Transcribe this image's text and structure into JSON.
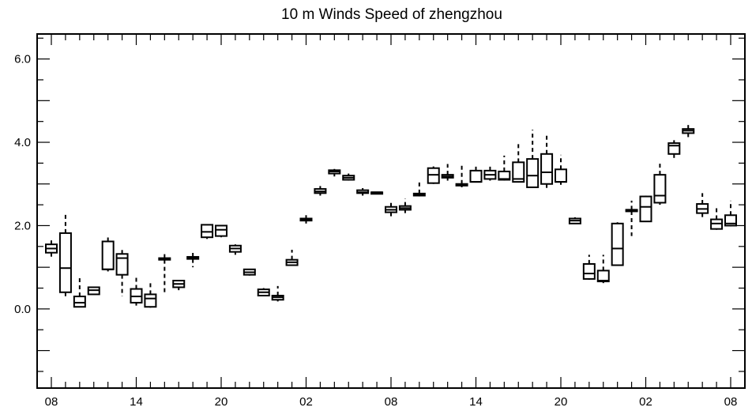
{
  "chart_data": {
    "type": "box",
    "title": "10 m Winds Speed of zhengzhou",
    "xlabel": "",
    "ylabel": "",
    "ylim": [
      -1.9,
      6.6
    ],
    "xlim": [
      -0.5,
      48.5
    ],
    "grid": false,
    "y_ticks": [
      {
        "value": 0.0,
        "label": "0.0"
      },
      {
        "value": 2.0,
        "label": "2.0"
      },
      {
        "value": 4.0,
        "label": "4.0"
      },
      {
        "value": 6.0,
        "label": "6.0"
      }
    ],
    "x_ticks": [
      {
        "index": 0,
        "label": "08"
      },
      {
        "index": 6,
        "label": "14"
      },
      {
        "index": 12,
        "label": "20"
      },
      {
        "index": 18,
        "label": "02"
      },
      {
        "index": 24,
        "label": "08"
      },
      {
        "index": 30,
        "label": "14"
      },
      {
        "index": 36,
        "label": "20"
      },
      {
        "index": 42,
        "label": "02"
      },
      {
        "index": 48,
        "label": "08"
      }
    ],
    "boxes": [
      {
        "index": 0,
        "min": 1.25,
        "q1": 1.35,
        "median": 1.45,
        "q3": 1.55,
        "max": 1.7
      },
      {
        "index": 1,
        "min": 0.25,
        "q1": 0.4,
        "median": 0.98,
        "q3": 1.82,
        "max": 2.3
      },
      {
        "index": 2,
        "min": 0.05,
        "q1": 0.05,
        "median": 0.15,
        "q3": 0.3,
        "max": 0.8
      },
      {
        "index": 3,
        "min": 0.35,
        "q1": 0.35,
        "median": 0.45,
        "q3": 0.52,
        "max": 0.52
      },
      {
        "index": 4,
        "min": 0.9,
        "q1": 0.95,
        "median": 0.95,
        "q3": 1.62,
        "max": 1.78
      },
      {
        "index": 5,
        "min": 0.3,
        "q1": 0.82,
        "median": 1.22,
        "q3": 1.32,
        "max": 1.42
      },
      {
        "index": 6,
        "min": 0.08,
        "q1": 0.15,
        "median": 0.3,
        "q3": 0.48,
        "max": 0.75
      },
      {
        "index": 7,
        "min": 0.03,
        "q1": 0.05,
        "median": 0.25,
        "q3": 0.35,
        "max": 0.65
      },
      {
        "index": 8,
        "min": 0.35,
        "q1": 1.18,
        "median": 1.2,
        "q3": 1.22,
        "max": 1.35
      },
      {
        "index": 9,
        "min": 0.45,
        "q1": 0.52,
        "median": 0.6,
        "q3": 0.68,
        "max": 0.68
      },
      {
        "index": 10,
        "min": 1.0,
        "q1": 1.2,
        "median": 1.22,
        "q3": 1.25,
        "max": 1.4
      },
      {
        "index": 11,
        "min": 1.68,
        "q1": 1.72,
        "median": 1.85,
        "q3": 2.02,
        "max": 2.02
      },
      {
        "index": 12,
        "min": 1.72,
        "q1": 1.75,
        "median": 1.9,
        "q3": 2.0,
        "max": 2.0
      },
      {
        "index": 13,
        "min": 1.3,
        "q1": 1.37,
        "median": 1.45,
        "q3": 1.52,
        "max": 1.55
      },
      {
        "index": 14,
        "min": 0.8,
        "q1": 0.82,
        "median": 0.88,
        "q3": 0.95,
        "max": 0.95
      },
      {
        "index": 15,
        "min": 0.32,
        "q1": 0.32,
        "median": 0.4,
        "q3": 0.47,
        "max": 0.5
      },
      {
        "index": 16,
        "min": 0.18,
        "q1": 0.22,
        "median": 0.28,
        "q3": 0.32,
        "max": 0.55
      },
      {
        "index": 17,
        "min": 1.05,
        "q1": 1.05,
        "median": 1.12,
        "q3": 1.18,
        "max": 1.42
      },
      {
        "index": 18,
        "min": 2.05,
        "q1": 2.12,
        "median": 2.15,
        "q3": 2.17,
        "max": 2.25
      },
      {
        "index": 19,
        "min": 2.72,
        "q1": 2.78,
        "median": 2.82,
        "q3": 2.88,
        "max": 2.95
      },
      {
        "index": 20,
        "min": 3.18,
        "q1": 3.25,
        "median": 3.3,
        "q3": 3.33,
        "max": 3.36
      },
      {
        "index": 21,
        "min": 3.08,
        "q1": 3.1,
        "median": 3.15,
        "q3": 3.2,
        "max": 3.25
      },
      {
        "index": 22,
        "min": 2.72,
        "q1": 2.78,
        "median": 2.8,
        "q3": 2.85,
        "max": 2.9
      },
      {
        "index": 23,
        "min": 2.78,
        "q1": 2.78,
        "median": 2.8,
        "q3": 2.8,
        "max": 2.8
      },
      {
        "index": 24,
        "min": 2.22,
        "q1": 2.32,
        "median": 2.38,
        "q3": 2.45,
        "max": 2.58
      },
      {
        "index": 25,
        "min": 2.3,
        "q1": 2.38,
        "median": 2.42,
        "q3": 2.47,
        "max": 2.65
      },
      {
        "index": 26,
        "min": 2.7,
        "q1": 2.72,
        "median": 2.75,
        "q3": 2.77,
        "max": 3.05
      },
      {
        "index": 27,
        "min": 3.0,
        "q1": 3.02,
        "median": 3.22,
        "q3": 3.38,
        "max": 3.42
      },
      {
        "index": 28,
        "min": 3.08,
        "q1": 3.15,
        "median": 3.18,
        "q3": 3.22,
        "max": 3.48
      },
      {
        "index": 29,
        "min": 2.92,
        "q1": 2.96,
        "median": 2.98,
        "q3": 3.0,
        "max": 3.45
      },
      {
        "index": 30,
        "min": 3.05,
        "q1": 3.05,
        "median": 3.05,
        "q3": 3.32,
        "max": 3.42
      },
      {
        "index": 31,
        "min": 3.08,
        "q1": 3.12,
        "median": 3.22,
        "q3": 3.32,
        "max": 3.48
      },
      {
        "index": 32,
        "min": 3.08,
        "q1": 3.1,
        "median": 3.12,
        "q3": 3.3,
        "max": 3.68
      },
      {
        "index": 33,
        "min": 3.05,
        "q1": 3.05,
        "median": 3.12,
        "q3": 3.52,
        "max": 4.0
      },
      {
        "index": 34,
        "min": 2.9,
        "q1": 2.92,
        "median": 3.2,
        "q3": 3.6,
        "max": 4.3
      },
      {
        "index": 35,
        "min": 2.88,
        "q1": 3.0,
        "median": 3.28,
        "q3": 3.72,
        "max": 4.22
      },
      {
        "index": 36,
        "min": 2.98,
        "q1": 3.05,
        "median": 3.05,
        "q3": 3.35,
        "max": 3.7
      },
      {
        "index": 37,
        "min": 2.05,
        "q1": 2.05,
        "median": 2.12,
        "q3": 2.17,
        "max": 2.2
      },
      {
        "index": 38,
        "min": 0.7,
        "q1": 0.72,
        "median": 0.85,
        "q3": 1.08,
        "max": 1.3
      },
      {
        "index": 39,
        "min": 0.62,
        "q1": 0.66,
        "median": 0.68,
        "q3": 0.92,
        "max": 1.3
      },
      {
        "index": 40,
        "min": 1.05,
        "q1": 1.05,
        "median": 1.45,
        "q3": 2.05,
        "max": 2.08
      },
      {
        "index": 41,
        "min": 1.75,
        "q1": 2.35,
        "median": 2.38,
        "q3": 2.38,
        "max": 2.6
      },
      {
        "index": 42,
        "min": 2.1,
        "q1": 2.1,
        "median": 2.45,
        "q3": 2.7,
        "max": 2.72
      },
      {
        "index": 43,
        "min": 2.5,
        "q1": 2.55,
        "median": 2.72,
        "q3": 3.22,
        "max": 3.55
      },
      {
        "index": 44,
        "min": 3.62,
        "q1": 3.72,
        "median": 3.92,
        "q3": 3.98,
        "max": 4.05
      },
      {
        "index": 45,
        "min": 4.05,
        "q1": 4.22,
        "median": 4.28,
        "q3": 4.32,
        "max": 4.42
      },
      {
        "index": 46,
        "min": 2.15,
        "q1": 2.3,
        "median": 2.4,
        "q3": 2.52,
        "max": 2.78
      },
      {
        "index": 47,
        "min": 1.9,
        "q1": 1.92,
        "median": 2.05,
        "q3": 2.15,
        "max": 2.45
      },
      {
        "index": 48,
        "min": 1.98,
        "q1": 2.0,
        "median": 2.05,
        "q3": 2.25,
        "max": 2.6
      }
    ]
  }
}
